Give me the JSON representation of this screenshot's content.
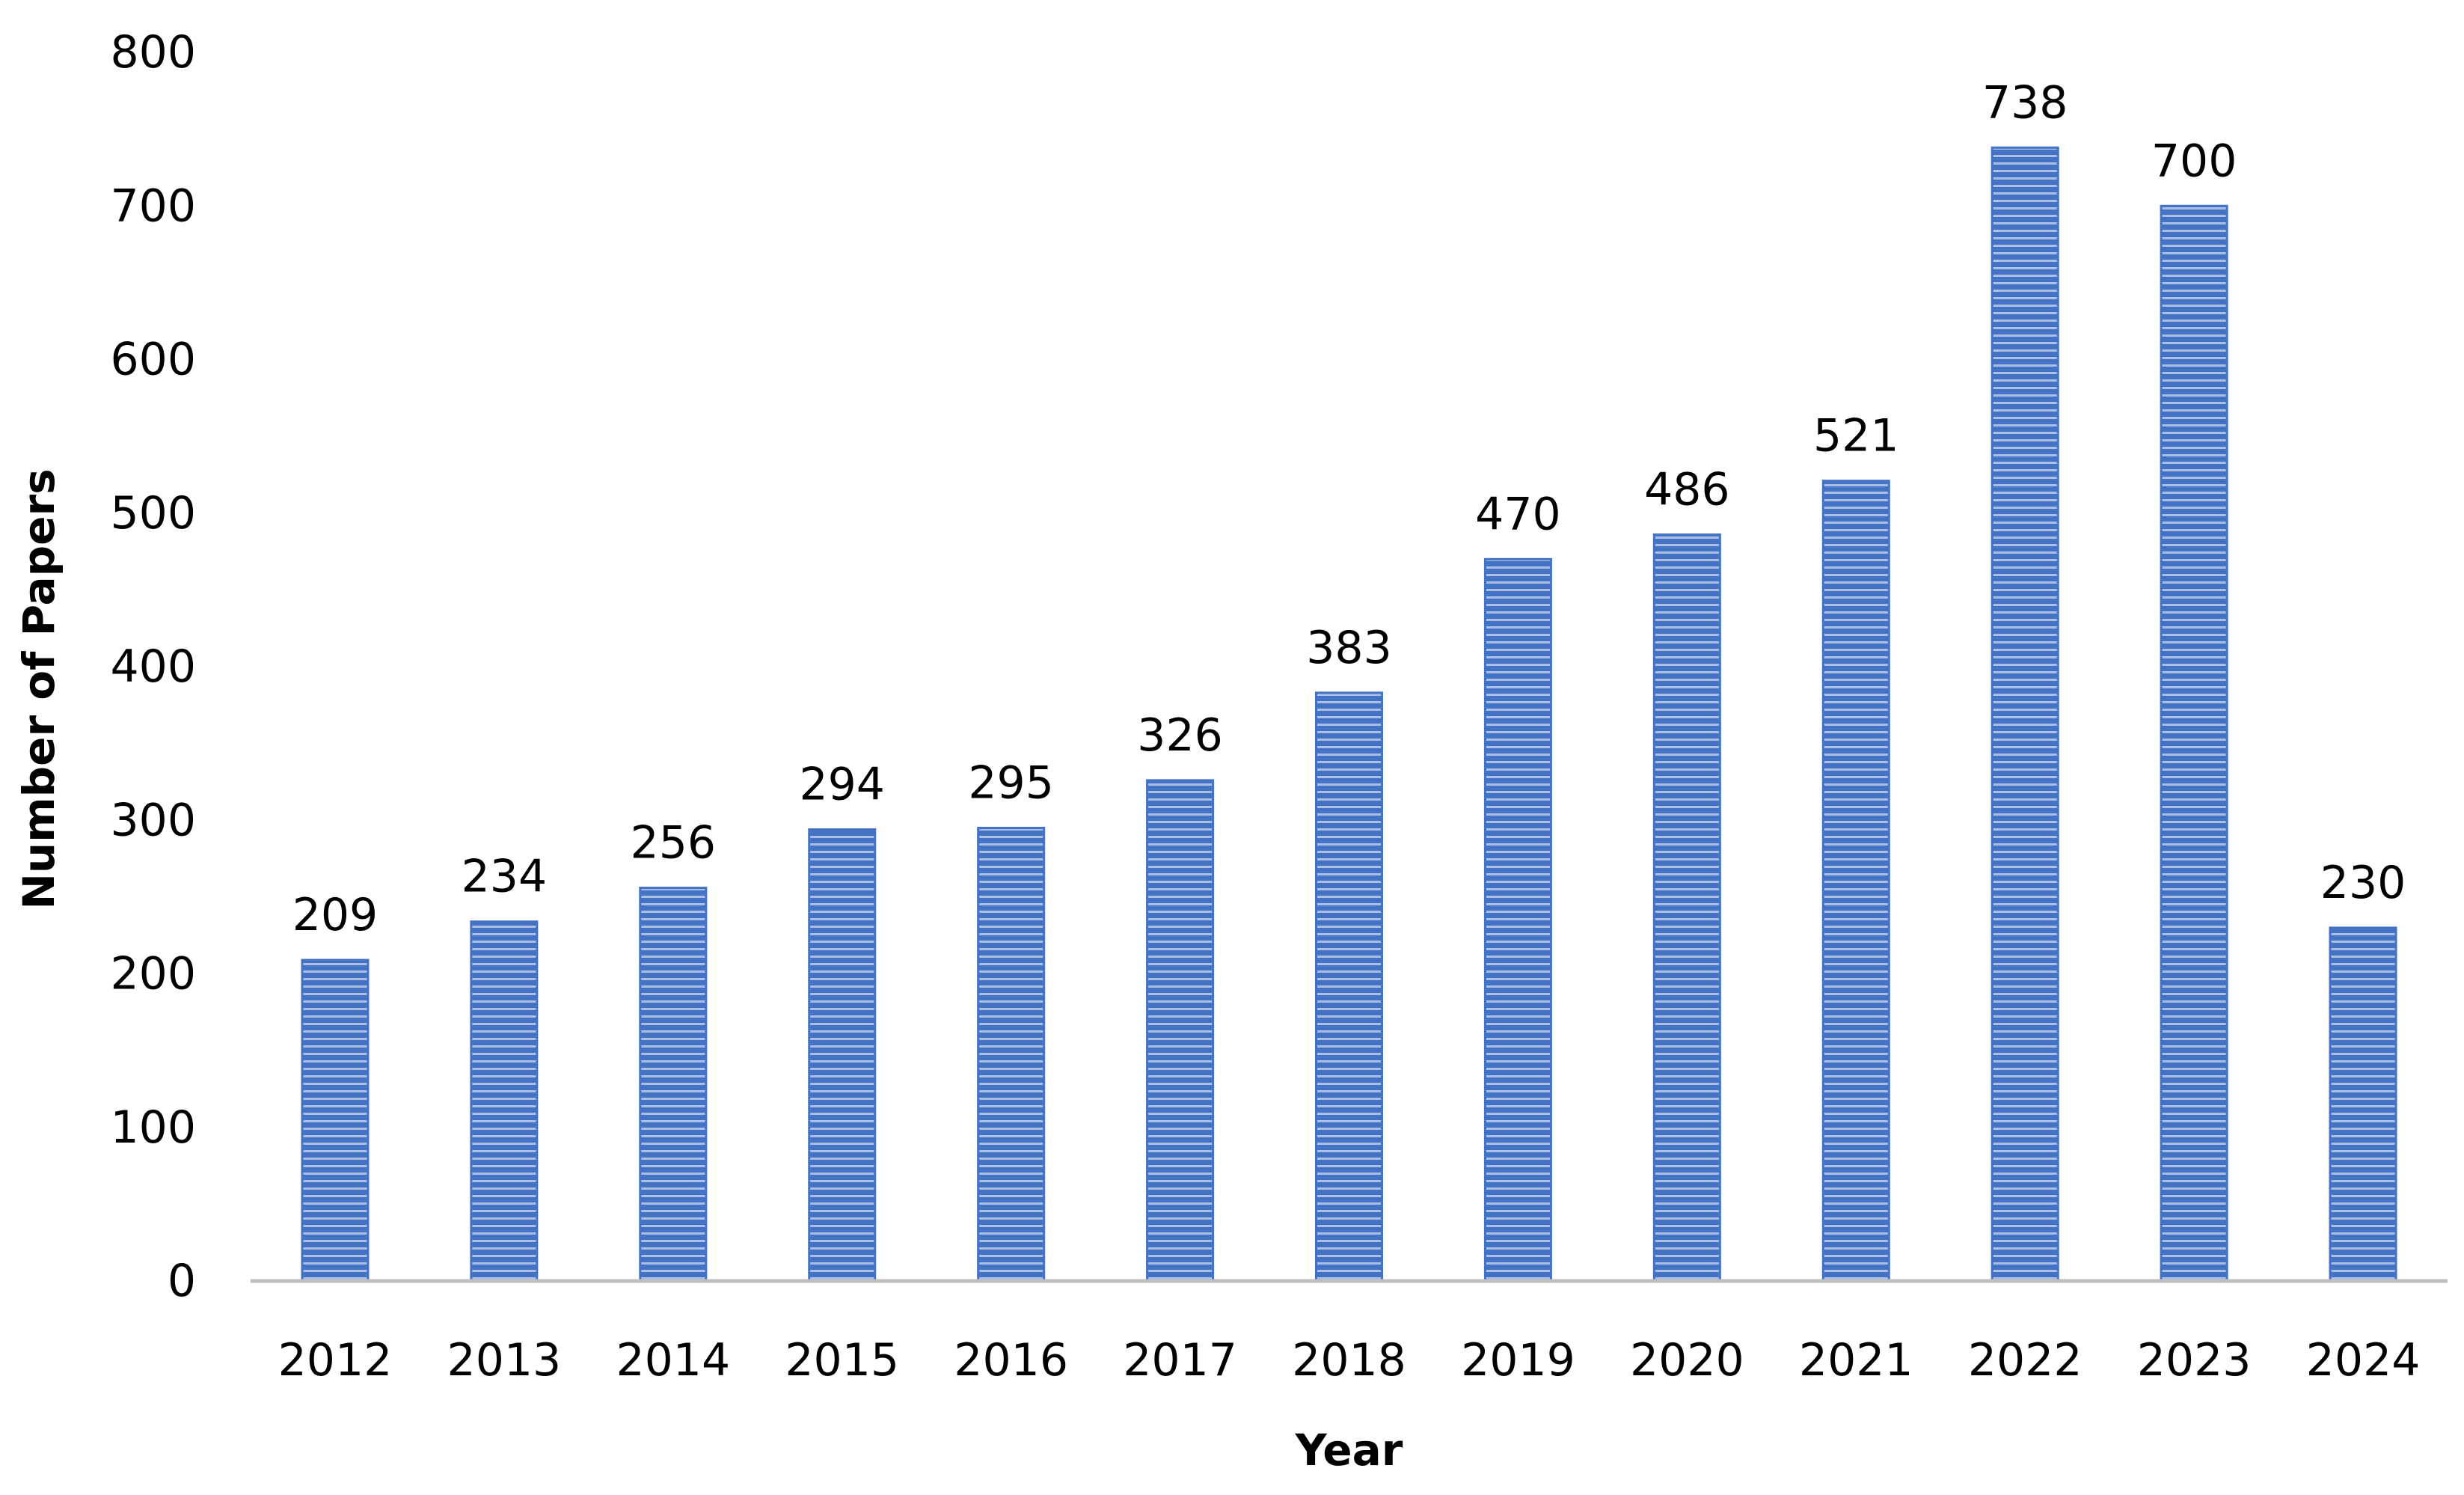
{
  "chart_data": {
    "type": "bar",
    "title": "",
    "xlabel": "Year",
    "ylabel": "Number of Papers",
    "categories": [
      "2012",
      "2013",
      "2014",
      "2015",
      "2016",
      "2017",
      "2018",
      "2019",
      "2020",
      "2021",
      "2022",
      "2023",
      "2024"
    ],
    "values": [
      209,
      234,
      256,
      294,
      295,
      326,
      383,
      470,
      486,
      521,
      738,
      700,
      230
    ],
    "data_labels": [
      "209",
      "234",
      "256",
      "294",
      "295",
      "326",
      "383",
      "470",
      "486",
      "521",
      "738",
      "700",
      "230"
    ],
    "ylim": [
      0,
      800
    ],
    "yticks": [
      0,
      100,
      200,
      300,
      400,
      500,
      600,
      700,
      800
    ],
    "ytick_labels": [
      "0",
      "100",
      "200",
      "300",
      "400",
      "500",
      "600",
      "700",
      "800"
    ],
    "grid": false,
    "legend": false,
    "colors": {
      "bar_fill": "#4472c4",
      "bar_stripe": "#ffffff",
      "axis_line": "#bfbfbf",
      "text": "#000000"
    }
  }
}
